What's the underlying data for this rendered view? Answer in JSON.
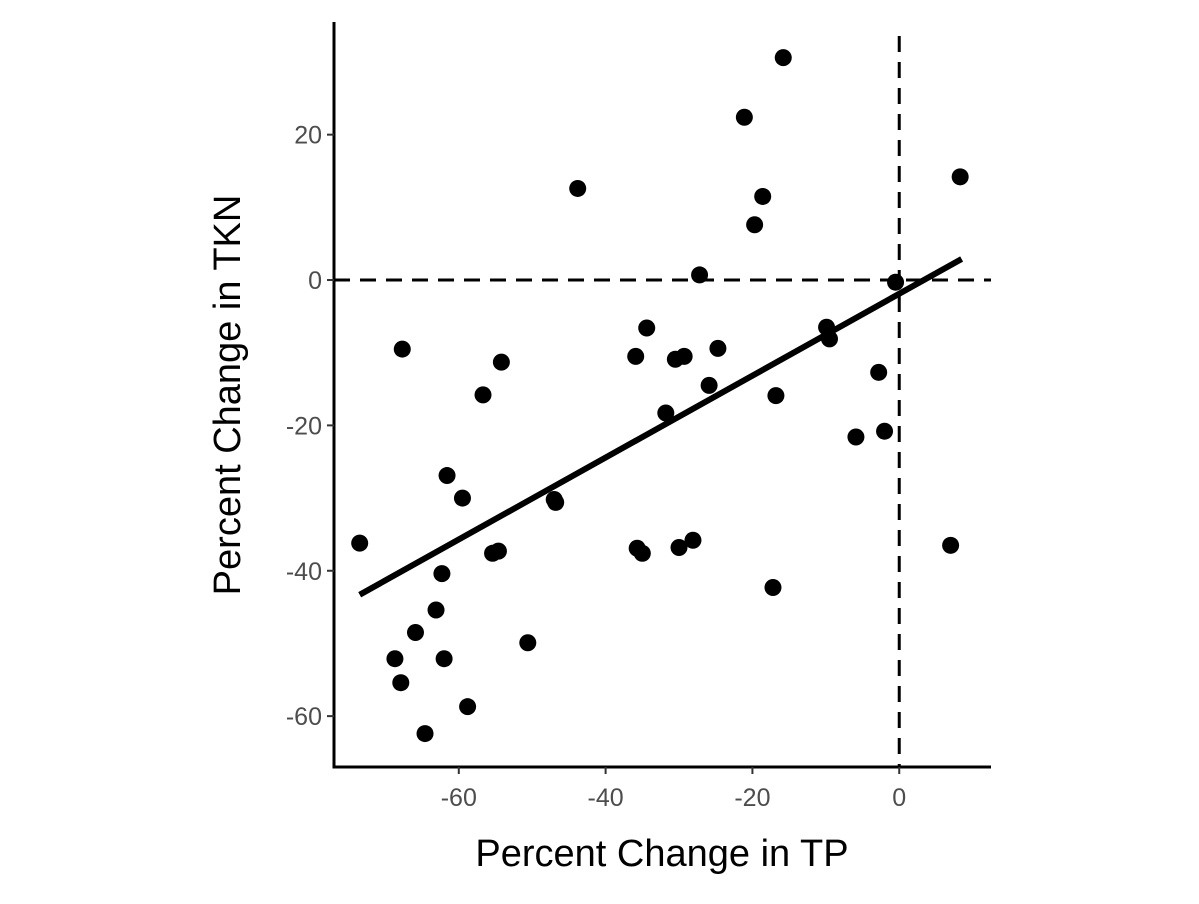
{
  "chart_data": {
    "type": "scatter",
    "xlabel": "Percent Change in TP",
    "ylabel": "Percent Change in TKN",
    "xlim": [
      -77,
      12.5
    ],
    "ylim": [
      -67,
      35.5
    ],
    "x_ticks": [
      -60,
      -40,
      -20,
      0
    ],
    "y_ticks": [
      -60,
      -40,
      -20,
      0,
      20
    ],
    "x_tick_labels": [
      "-60",
      "-40",
      "-20",
      "0"
    ],
    "y_tick_labels": [
      "-60",
      "-40",
      "-20",
      "0",
      "20"
    ],
    "grid": false,
    "reference_lines": [
      {
        "orientation": "horizontal",
        "value": 0,
        "style": "dashed"
      },
      {
        "orientation": "vertical",
        "value": 0,
        "style": "dashed"
      }
    ],
    "trend_line": {
      "x": [
        -73.5,
        8.5
      ],
      "y": [
        -43.3,
        2.9
      ]
    },
    "points": [
      {
        "x": -73.5,
        "y": -36.2
      },
      {
        "x": -68.7,
        "y": -52.1
      },
      {
        "x": -67.9,
        "y": -55.4
      },
      {
        "x": -67.7,
        "y": -9.5
      },
      {
        "x": -65.9,
        "y": -48.5
      },
      {
        "x": -64.6,
        "y": -62.4
      },
      {
        "x": -63.1,
        "y": -45.4
      },
      {
        "x": -62.3,
        "y": -40.4
      },
      {
        "x": -62.0,
        "y": -52.1
      },
      {
        "x": -61.6,
        "y": -26.9
      },
      {
        "x": -59.5,
        "y": -30.0
      },
      {
        "x": -58.8,
        "y": -58.7
      },
      {
        "x": -56.7,
        "y": -15.8
      },
      {
        "x": -55.4,
        "y": -37.6
      },
      {
        "x": -54.6,
        "y": -37.3
      },
      {
        "x": -54.2,
        "y": -11.3
      },
      {
        "x": -50.6,
        "y": -49.9
      },
      {
        "x": -47.0,
        "y": -30.2
      },
      {
        "x": -46.8,
        "y": -30.6
      },
      {
        "x": -43.8,
        "y": 12.6
      },
      {
        "x": -35.9,
        "y": -10.5
      },
      {
        "x": -35.7,
        "y": -36.9
      },
      {
        "x": -35.0,
        "y": -37.6
      },
      {
        "x": -34.4,
        "y": -6.6
      },
      {
        "x": -31.8,
        "y": -18.3
      },
      {
        "x": -30.5,
        "y": -10.9
      },
      {
        "x": -30.0,
        "y": -36.8
      },
      {
        "x": -29.3,
        "y": -10.5
      },
      {
        "x": -28.1,
        "y": -35.8
      },
      {
        "x": -27.2,
        "y": 0.7
      },
      {
        "x": -25.9,
        "y": -14.5
      },
      {
        "x": -24.7,
        "y": -9.4
      },
      {
        "x": -21.1,
        "y": 22.4
      },
      {
        "x": -19.7,
        "y": 7.6
      },
      {
        "x": -18.6,
        "y": 11.5
      },
      {
        "x": -17.2,
        "y": -42.3
      },
      {
        "x": -16.8,
        "y": -15.9
      },
      {
        "x": -15.8,
        "y": 30.6
      },
      {
        "x": -9.9,
        "y": -6.5
      },
      {
        "x": -9.5,
        "y": -8.1
      },
      {
        "x": -5.9,
        "y": -21.6
      },
      {
        "x": -2.8,
        "y": -12.7
      },
      {
        "x": -2.0,
        "y": -20.8
      },
      {
        "x": -0.5,
        "y": -0.3
      },
      {
        "x": 7.0,
        "y": -36.5
      },
      {
        "x": 8.3,
        "y": 14.2
      }
    ]
  }
}
